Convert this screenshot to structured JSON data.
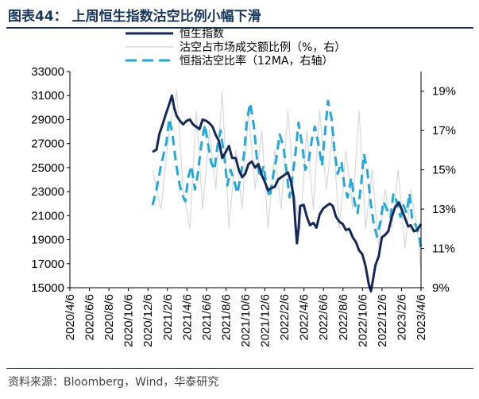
{
  "header": {
    "title": "图表44：  上周恒生指数沽空比例小幅下滑"
  },
  "footer": {
    "source": "资料来源：Bloomberg，Wind，华泰研究"
  },
  "chart_data": {
    "type": "line",
    "title": "上周恒生指数沽空比例小幅下滑",
    "x_tick_labels": [
      "2020/4/6",
      "2020/6/6",
      "2020/8/6",
      "2020/10/6",
      "2020/12/6",
      "2021/2/6",
      "2021/4/6",
      "2021/6/6",
      "2021/8/6",
      "2021/10/6",
      "2021/12/6",
      "2022/2/6",
      "2022/4/6",
      "2022/6/6",
      "2022/8/6",
      "2022/10/6",
      "2022/12/6",
      "2023/2/6",
      "2023/4/6"
    ],
    "y_left": {
      "ticks": [
        "33000",
        "31000",
        "29000",
        "27000",
        "25000",
        "23000",
        "21000",
        "19000",
        "17000",
        "15000"
      ],
      "ylim": [
        15000,
        33000
      ]
    },
    "y_right": {
      "ticks": [
        "19%",
        "17%",
        "15%",
        "13%",
        "11%",
        "9%"
      ],
      "ylim": [
        9,
        20
      ]
    },
    "legend": {
      "placement": "top",
      "items": [
        {
          "label": "恒生指数",
          "style": "solid-thick",
          "color": "#16285a"
        },
        {
          "label": "沽空占市场成交额比例（%，右）",
          "style": "solid-thin",
          "color": "#d9d9d9"
        },
        {
          "label": "恒指沽空比率（12MA，右轴）",
          "style": "dashed",
          "color": "#21a9db"
        }
      ]
    },
    "series": [
      {
        "name": "恒生指数",
        "axis": "left",
        "color": "#16285a",
        "x": [
          "2020-12-20",
          "2021-01-01",
          "2021-01-10",
          "2021-01-20",
          "2021-02-01",
          "2021-02-10",
          "2021-02-18",
          "2021-02-25",
          "2021-03-05",
          "2021-03-15",
          "2021-03-25",
          "2021-04-05",
          "2021-04-15",
          "2021-04-25",
          "2021-05-05",
          "2021-05-15",
          "2021-05-25",
          "2021-06-05",
          "2021-06-15",
          "2021-06-25",
          "2021-07-05",
          "2021-07-15",
          "2021-07-25",
          "2021-08-05",
          "2021-08-15",
          "2021-08-25",
          "2021-09-05",
          "2021-09-15",
          "2021-09-25",
          "2021-10-05",
          "2021-10-15",
          "2021-10-25",
          "2021-11-05",
          "2021-11-15",
          "2021-11-25",
          "2021-12-05",
          "2021-12-15",
          "2021-12-25",
          "2022-01-05",
          "2022-01-15",
          "2022-01-25",
          "2022-02-05",
          "2022-02-15",
          "2022-02-25",
          "2022-03-05",
          "2022-03-10",
          "2022-03-15",
          "2022-03-20",
          "2022-03-25",
          "2022-04-05",
          "2022-04-15",
          "2022-04-25",
          "2022-05-05",
          "2022-05-15",
          "2022-05-25",
          "2022-06-05",
          "2022-06-15",
          "2022-06-25",
          "2022-07-05",
          "2022-07-15",
          "2022-07-25",
          "2022-08-05",
          "2022-08-15",
          "2022-08-25",
          "2022-09-05",
          "2022-09-15",
          "2022-09-25",
          "2022-10-05",
          "2022-10-15",
          "2022-10-25",
          "2022-11-01",
          "2022-11-08",
          "2022-11-15",
          "2022-11-25",
          "2022-12-05",
          "2022-12-15",
          "2022-12-25",
          "2023-01-05",
          "2023-01-15",
          "2023-01-27",
          "2023-02-05",
          "2023-02-15",
          "2023-02-25",
          "2023-03-05",
          "2023-03-15",
          "2023-03-25",
          "2023-04-06"
        ],
        "y": [
          26300,
          26500,
          27800,
          28600,
          29600,
          30300,
          31000,
          30000,
          29300,
          28900,
          28600,
          28900,
          29000,
          28600,
          28400,
          28200,
          29000,
          28900,
          28700,
          28400,
          27700,
          27200,
          25800,
          26300,
          26800,
          25800,
          25800,
          24800,
          24200,
          24500,
          25300,
          25500,
          25000,
          25300,
          24400,
          23800,
          23100,
          23300,
          23400,
          24000,
          24200,
          24400,
          24600,
          23800,
          22500,
          20400,
          18700,
          19900,
          21800,
          21900,
          20900,
          20200,
          20400,
          20000,
          21100,
          21600,
          21800,
          22000,
          21800,
          20900,
          20500,
          20300,
          19800,
          19900,
          19200,
          18800,
          18100,
          17800,
          16800,
          15300,
          14700,
          15800,
          16900,
          17600,
          19200,
          19400,
          19700,
          20900,
          21700,
          22100,
          21500,
          20800,
          20100,
          20200,
          19700,
          19800,
          20300
        ]
      },
      {
        "name": "沽空占市场成交额比例（%，右）",
        "axis": "right",
        "color": "#d9d9d9",
        "x": [
          "2020-12-20",
          "2021-01-15",
          "2021-02-10",
          "2021-03-05",
          "2021-03-25",
          "2021-04-15",
          "2021-05-05",
          "2021-05-25",
          "2021-06-15",
          "2021-07-05",
          "2021-07-25",
          "2021-08-15",
          "2021-09-05",
          "2021-09-25",
          "2021-10-15",
          "2021-11-05",
          "2021-11-25",
          "2021-12-15",
          "2022-01-05",
          "2022-01-25",
          "2022-02-15",
          "2022-03-05",
          "2022-03-25",
          "2022-04-15",
          "2022-05-05",
          "2022-05-25",
          "2022-06-15",
          "2022-07-05",
          "2022-07-25",
          "2022-08-15",
          "2022-09-05",
          "2022-09-25",
          "2022-10-15",
          "2022-11-05",
          "2022-11-25",
          "2022-12-15",
          "2023-01-05",
          "2023-01-25",
          "2023-02-15",
          "2023-03-05",
          "2023-03-25",
          "2023-04-06"
        ],
        "y": [
          15,
          13,
          17,
          19,
          14,
          12,
          18,
          13,
          17,
          14,
          19,
          12,
          16,
          13,
          18,
          14,
          17,
          12,
          16,
          13,
          18,
          14,
          12,
          17,
          13,
          18,
          14,
          17,
          12,
          16,
          13,
          18,
          12,
          15,
          11,
          14,
          12,
          15,
          11,
          14,
          12,
          10
        ]
      },
      {
        "name": "恒指沽空比率（12MA，右轴）",
        "axis": "right",
        "color": "#21a9db",
        "x": [
          "2020-12-20",
          "2021-01-01",
          "2021-01-15",
          "2021-02-01",
          "2021-02-10",
          "2021-02-20",
          "2021-03-01",
          "2021-03-10",
          "2021-03-20",
          "2021-04-01",
          "2021-04-10",
          "2021-04-20",
          "2021-05-01",
          "2021-05-10",
          "2021-05-20",
          "2021-06-01",
          "2021-06-10",
          "2021-06-20",
          "2021-07-01",
          "2021-07-10",
          "2021-07-20",
          "2021-08-01",
          "2021-08-10",
          "2021-08-20",
          "2021-09-01",
          "2021-09-10",
          "2021-09-20",
          "2021-10-01",
          "2021-10-10",
          "2021-10-20",
          "2021-11-01",
          "2021-11-10",
          "2021-11-20",
          "2021-12-01",
          "2021-12-10",
          "2021-12-20",
          "2022-01-01",
          "2022-01-10",
          "2022-01-20",
          "2022-02-01",
          "2022-02-10",
          "2022-02-20",
          "2022-03-01",
          "2022-03-10",
          "2022-03-20",
          "2022-04-01",
          "2022-04-10",
          "2022-04-20",
          "2022-05-01",
          "2022-05-10",
          "2022-05-20",
          "2022-06-01",
          "2022-06-10",
          "2022-06-20",
          "2022-07-01",
          "2022-07-10",
          "2022-07-20",
          "2022-08-01",
          "2022-08-10",
          "2022-08-20",
          "2022-09-01",
          "2022-09-10",
          "2022-09-20",
          "2022-10-01",
          "2022-10-10",
          "2022-10-20",
          "2022-11-01",
          "2022-11-10",
          "2022-11-20",
          "2022-12-01",
          "2022-12-10",
          "2022-12-20",
          "2023-01-01",
          "2023-01-10",
          "2023-01-20",
          "2023-02-01",
          "2023-02-10",
          "2023-02-20",
          "2023-03-01",
          "2023-03-10",
          "2023-03-20",
          "2023-04-01",
          "2023-04-06"
        ],
        "y": [
          13.2,
          14.0,
          15.2,
          16.4,
          17.6,
          16.8,
          15.6,
          14.6,
          13.8,
          13.4,
          14.6,
          15.2,
          14.0,
          14.8,
          16.2,
          17.3,
          16.4,
          15.4,
          15.0,
          16.2,
          17.0,
          15.6,
          14.2,
          15.0,
          14.4,
          13.8,
          14.6,
          15.8,
          17.5,
          18.4,
          17.2,
          15.6,
          14.6,
          15.2,
          14.2,
          13.6,
          14.8,
          15.6,
          16.8,
          16.2,
          15.0,
          13.6,
          14.6,
          15.8,
          17.4,
          16.2,
          15.0,
          15.4,
          16.6,
          17.2,
          16.4,
          15.2,
          16.8,
          18.5,
          17.6,
          16.0,
          14.8,
          15.4,
          14.2,
          13.6,
          14.6,
          13.4,
          12.8,
          14.2,
          15.8,
          15.0,
          13.2,
          12.2,
          11.6,
          12.4,
          13.4,
          13.0,
          12.6,
          13.8,
          13.4,
          12.6,
          13.2,
          12.8,
          13.8,
          12.4,
          12.2,
          11.6,
          11.0
        ]
      }
    ]
  }
}
